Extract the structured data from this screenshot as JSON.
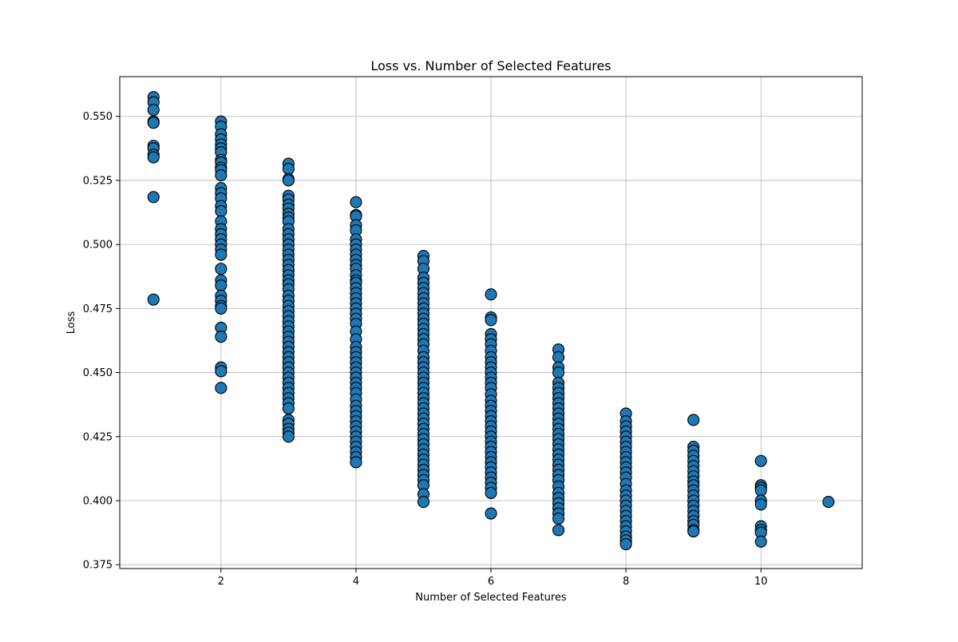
{
  "chart_data": {
    "type": "scatter",
    "title": "Loss vs. Number of Selected Features",
    "xlabel": "Number of Selected Features",
    "ylabel": "Loss",
    "xlim": [
      0.5,
      11.5
    ],
    "ylim": [
      0.3735,
      0.5655
    ],
    "xticks": [
      2,
      4,
      6,
      8,
      10
    ],
    "yticks": [
      0.375,
      0.4,
      0.425,
      0.45,
      0.475,
      0.5,
      0.525,
      0.55
    ],
    "ytick_labels": [
      "0.375",
      "0.400",
      "0.425",
      "0.450",
      "0.475",
      "0.500",
      "0.525",
      "0.550"
    ],
    "xtick_labels": [
      "2",
      "4",
      "6",
      "8",
      "10"
    ],
    "grid": true,
    "marker_color": "#1f77b4",
    "marker_edge_color": "#000000",
    "points": [
      {
        "x": 1,
        "y": [
          0.5575,
          0.5555,
          0.5525,
          0.548,
          0.5475,
          0.5385,
          0.5375,
          0.535,
          0.534,
          0.5185,
          0.4785
        ]
      },
      {
        "x": 2,
        "y": [
          0.548,
          0.546,
          0.543,
          0.541,
          0.539,
          0.5375,
          0.536,
          0.533,
          0.532,
          0.53,
          0.529,
          0.527,
          0.522,
          0.52,
          0.518,
          0.515,
          0.513,
          0.509,
          0.506,
          0.504,
          0.502,
          0.5,
          0.498,
          0.496,
          0.4905,
          0.486,
          0.484,
          0.48,
          0.478,
          0.476,
          0.475,
          0.4675,
          0.464,
          0.452,
          0.4505,
          0.444
        ]
      },
      {
        "x": 3,
        "y": [
          0.5315,
          0.5295,
          0.5255,
          0.525,
          0.519,
          0.5175,
          0.5155,
          0.514,
          0.512,
          0.5105,
          0.509,
          0.506,
          0.504,
          0.502,
          0.5,
          0.498,
          0.496,
          0.494,
          0.492,
          0.49,
          0.488,
          0.486,
          0.4845,
          0.4825,
          0.48,
          0.478,
          0.476,
          0.474,
          0.472,
          0.47,
          0.468,
          0.466,
          0.464,
          0.462,
          0.46,
          0.458,
          0.456,
          0.454,
          0.452,
          0.45,
          0.448,
          0.446,
          0.444,
          0.442,
          0.44,
          0.438,
          0.436,
          0.4315,
          0.43,
          0.428,
          0.4265,
          0.425
        ]
      },
      {
        "x": 4,
        "y": [
          0.5165,
          0.5115,
          0.511,
          0.5075,
          0.5055,
          0.502,
          0.5,
          0.498,
          0.496,
          0.494,
          0.492,
          0.4905,
          0.488,
          0.486,
          0.485,
          0.483,
          0.481,
          0.479,
          0.477,
          0.475,
          0.473,
          0.471,
          0.469,
          0.466,
          0.463,
          0.46,
          0.458,
          0.456,
          0.454,
          0.452,
          0.45,
          0.448,
          0.446,
          0.444,
          0.442,
          0.4395,
          0.437,
          0.435,
          0.433,
          0.431,
          0.429,
          0.427,
          0.425,
          0.423,
          0.421,
          0.419,
          0.417,
          0.415
        ]
      },
      {
        "x": 5,
        "y": [
          0.4955,
          0.4935,
          0.4905,
          0.487,
          0.485,
          0.483,
          0.481,
          0.479,
          0.477,
          0.475,
          0.473,
          0.471,
          0.469,
          0.467,
          0.465,
          0.463,
          0.461,
          0.4585,
          0.456,
          0.454,
          0.452,
          0.45,
          0.448,
          0.446,
          0.444,
          0.442,
          0.44,
          0.438,
          0.436,
          0.434,
          0.432,
          0.43,
          0.428,
          0.426,
          0.424,
          0.422,
          0.42,
          0.418,
          0.416,
          0.414,
          0.412,
          0.41,
          0.408,
          0.406,
          0.4025,
          0.3995
        ]
      },
      {
        "x": 6,
        "y": [
          0.4805,
          0.4715,
          0.4705,
          0.465,
          0.463,
          0.461,
          0.4585,
          0.456,
          0.454,
          0.452,
          0.45,
          0.448,
          0.446,
          0.444,
          0.4415,
          0.439,
          0.437,
          0.435,
          0.433,
          0.431,
          0.429,
          0.427,
          0.425,
          0.423,
          0.421,
          0.419,
          0.417,
          0.415,
          0.413,
          0.411,
          0.409,
          0.407,
          0.405,
          0.403,
          0.395
        ]
      },
      {
        "x": 7,
        "y": [
          0.459,
          0.456,
          0.452,
          0.45,
          0.446,
          0.444,
          0.442,
          0.44,
          0.438,
          0.436,
          0.434,
          0.432,
          0.43,
          0.428,
          0.426,
          0.424,
          0.422,
          0.42,
          0.418,
          0.416,
          0.414,
          0.412,
          0.41,
          0.408,
          0.4055,
          0.403,
          0.401,
          0.399,
          0.397,
          0.395,
          0.393,
          0.3885
        ]
      },
      {
        "x": 8,
        "y": [
          0.434,
          0.431,
          0.429,
          0.427,
          0.425,
          0.423,
          0.421,
          0.419,
          0.417,
          0.415,
          0.413,
          0.411,
          0.409,
          0.4065,
          0.404,
          0.402,
          0.4,
          0.398,
          0.396,
          0.394,
          0.392,
          0.39,
          0.388,
          0.386,
          0.3845,
          0.383
        ]
      },
      {
        "x": 9,
        "y": [
          0.4315,
          0.421,
          0.4195,
          0.4175,
          0.4155,
          0.4135,
          0.4115,
          0.4095,
          0.4075,
          0.406,
          0.404,
          0.402,
          0.4,
          0.398,
          0.396,
          0.394,
          0.392,
          0.3905,
          0.3885,
          0.388
        ]
      },
      {
        "x": 10,
        "y": [
          0.4155,
          0.406,
          0.405,
          0.404,
          0.4,
          0.3985,
          0.39,
          0.3885,
          0.3875,
          0.384
        ]
      },
      {
        "x": 11,
        "y": [
          0.3995
        ]
      }
    ]
  }
}
